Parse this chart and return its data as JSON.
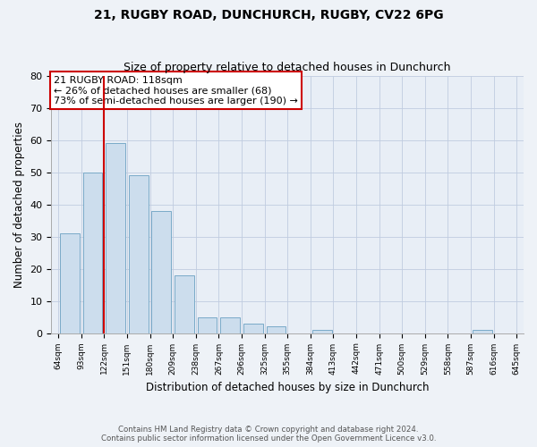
{
  "title": "21, RUGBY ROAD, DUNCHURCH, RUGBY, CV22 6PG",
  "subtitle": "Size of property relative to detached houses in Dunchurch",
  "xlabel": "Distribution of detached houses by size in Dunchurch",
  "ylabel": "Number of detached properties",
  "bin_labels": [
    "64sqm",
    "93sqm",
    "122sqm",
    "151sqm",
    "180sqm",
    "209sqm",
    "238sqm",
    "267sqm",
    "296sqm",
    "325sqm",
    "355sqm",
    "384sqm",
    "413sqm",
    "442sqm",
    "471sqm",
    "500sqm",
    "529sqm",
    "558sqm",
    "587sqm",
    "616sqm",
    "645sqm"
  ],
  "bar_values": [
    31,
    50,
    59,
    49,
    38,
    18,
    5,
    5,
    3,
    2,
    0,
    1,
    0,
    0,
    0,
    0,
    0,
    0,
    1,
    0,
    0
  ],
  "bar_color": "#ccdded",
  "bar_edge_color": "#7aaac8",
  "vline_color": "#cc0000",
  "ylim": [
    0,
    80
  ],
  "yticks": [
    0,
    10,
    20,
    30,
    40,
    50,
    60,
    70,
    80
  ],
  "annotation_title": "21 RUGBY ROAD: 118sqm",
  "annotation_line1": "← 26% of detached houses are smaller (68)",
  "annotation_line2": "73% of semi-detached houses are larger (190) →",
  "footer1": "Contains HM Land Registry data © Crown copyright and database right 2024.",
  "footer2": "Contains public sector information licensed under the Open Government Licence v3.0.",
  "bg_color": "#eef2f7",
  "plot_bg_color": "#e8eef6"
}
